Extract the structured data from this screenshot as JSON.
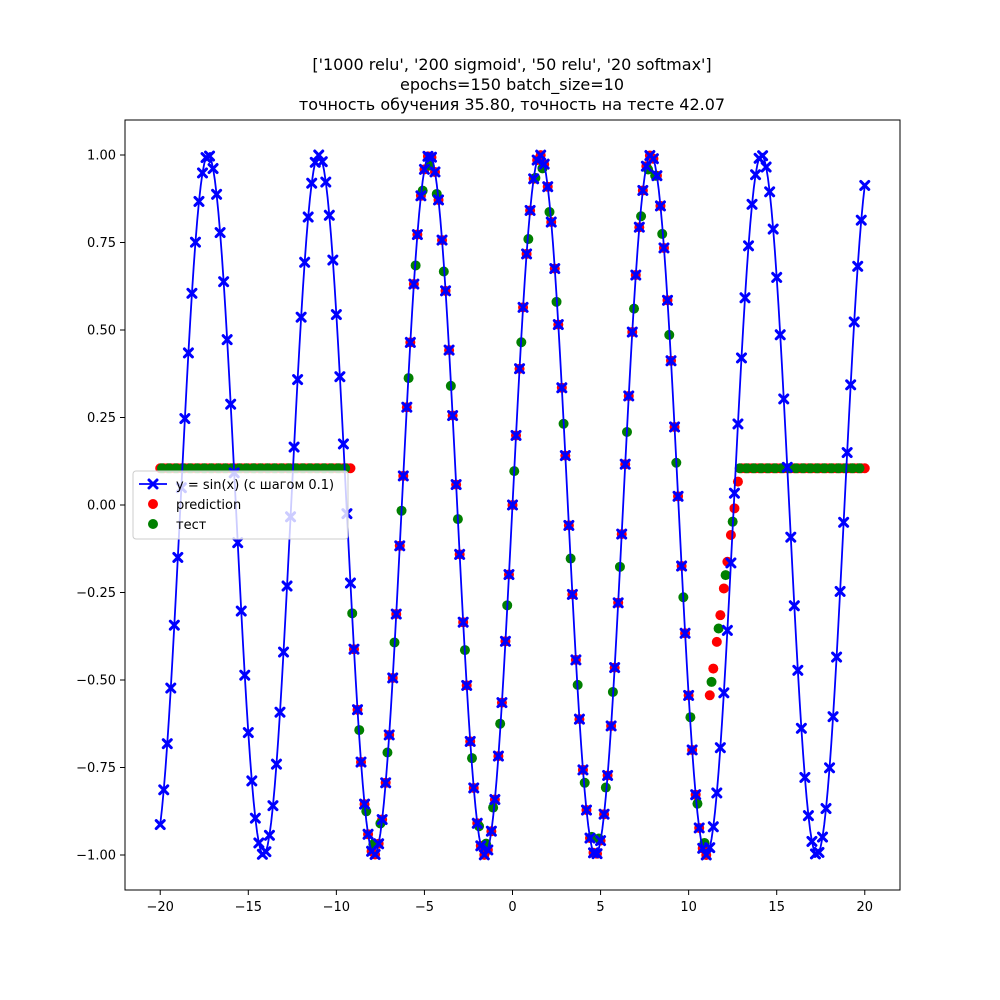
{
  "chart_data": {
    "type": "scatter",
    "title_lines": [
      "['1000 relu', '200 sigmoid', '50 relu', '20 softmax']",
      "epochs=150 batch_size=10",
      "точность обучения 35.80, точность на тесте 42.07"
    ],
    "xlabel": "",
    "ylabel": "",
    "xlim": [
      -22.0,
      22.0
    ],
    "ylim": [
      -1.1,
      1.1
    ],
    "xticks": [
      -20,
      -15,
      -10,
      -5,
      0,
      5,
      10,
      15,
      20
    ],
    "xtick_labels": [
      "−20",
      "−15",
      "−10",
      "−5",
      "0",
      "5",
      "10",
      "15",
      "20"
    ],
    "yticks": [
      1.0,
      0.75,
      0.5,
      0.25,
      0.0,
      -0.25,
      -0.5,
      -0.75,
      -1.0
    ],
    "ytick_labels": [
      "1.00",
      "0.75",
      "0.50",
      "0.25",
      "0.00",
      "−0.25",
      "−0.50",
      "−0.75",
      "−1.00"
    ],
    "grid": false,
    "legend_position": "center-left",
    "series": [
      {
        "name": "y = sin(x) (с шагом 0.1)",
        "kind": "line-with-x-markers",
        "color": "#0000ff",
        "function": "sin",
        "x_start": -20.0,
        "x_end": 20.0,
        "step": 0.1,
        "marker_step": 0.2
      },
      {
        "name": "prediction",
        "kind": "scatter",
        "color": "#ff0000",
        "x_start": -20.0,
        "x_end": 20.0,
        "step": 0.2,
        "rule": "0.105 for x <= -9.2; sin(x) for -9.2 < x < 12.2; linear ramp from -0.6 to 0.105 over 11 < x <= 12.9; 0.105 for x >= 12.9"
      },
      {
        "name": "тест",
        "kind": "scatter",
        "color": "#008000",
        "x_start": -20.0,
        "x_end": 20.0,
        "step": 0.4,
        "rule": "same as prediction, sampled at every other point with small offsets"
      }
    ]
  }
}
